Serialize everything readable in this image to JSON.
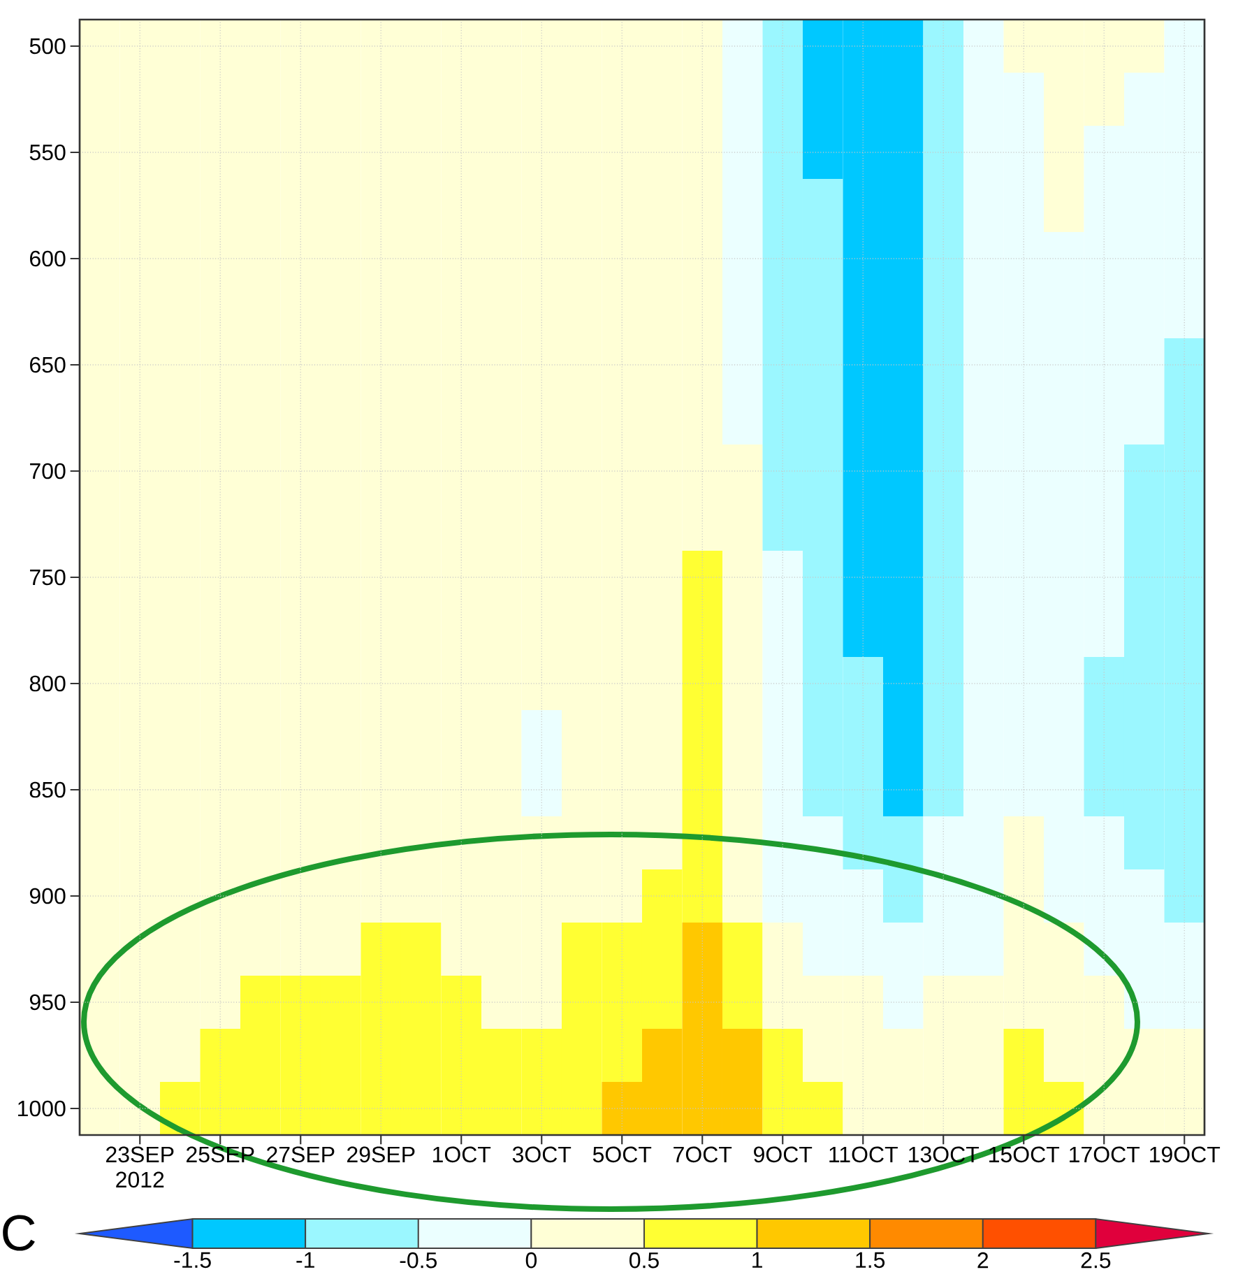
{
  "chart_data": {
    "type": "heatmap",
    "categories": [
      null,
      "23SEP 2012",
      null,
      "25SEP",
      null,
      "27SEP",
      null,
      "29SEP",
      null,
      "1OCT",
      null,
      "3OCT",
      null,
      "5OCT",
      null,
      "7OCT",
      null,
      "9OCT",
      null,
      "11OCT",
      null,
      "13OCT",
      null,
      "15OCT",
      null,
      "17OCT",
      null,
      "19OCT"
    ],
    "y_categories": [
      "500",
      null,
      "550",
      null,
      "600",
      null,
      "650",
      null,
      "700",
      null,
      "750",
      null,
      "800",
      null,
      "850",
      null,
      "900",
      null,
      "950",
      null,
      "1000"
    ],
    "cells": [
      [
        0.25,
        0.25,
        0.25,
        0.25,
        0.25,
        0.25,
        0.25,
        0.25,
        0.25,
        0.25,
        0.25,
        0.25,
        0.25,
        0.25,
        0.25,
        0.25,
        -0.25,
        -0.75,
        -1.25,
        -1.25,
        -1.25,
        -0.75,
        -0.25,
        0.25,
        0.25,
        0.25,
        0.25,
        -0.25
      ],
      [
        0.25,
        0.25,
        0.25,
        0.25,
        0.25,
        0.25,
        0.25,
        0.25,
        0.25,
        0.25,
        0.25,
        0.25,
        0.25,
        0.25,
        0.25,
        0.25,
        -0.25,
        -0.75,
        -1.25,
        -1.25,
        -1.25,
        -0.75,
        -0.25,
        -0.25,
        0.25,
        0.25,
        -0.25,
        -0.25
      ],
      [
        0.25,
        0.25,
        0.25,
        0.25,
        0.25,
        0.25,
        0.25,
        0.25,
        0.25,
        0.25,
        0.25,
        0.25,
        0.25,
        0.25,
        0.25,
        0.25,
        -0.25,
        -0.75,
        -1.25,
        -1.25,
        -1.25,
        -0.75,
        -0.25,
        -0.25,
        0.25,
        -0.25,
        -0.25,
        -0.25
      ],
      [
        0.25,
        0.25,
        0.25,
        0.25,
        0.25,
        0.25,
        0.25,
        0.25,
        0.25,
        0.25,
        0.25,
        0.25,
        0.25,
        0.25,
        0.25,
        0.25,
        -0.25,
        -0.75,
        -0.75,
        -1.25,
        -1.25,
        -0.75,
        -0.25,
        -0.25,
        0.25,
        -0.25,
        -0.25,
        -0.25
      ],
      [
        0.25,
        0.25,
        0.25,
        0.25,
        0.25,
        0.25,
        0.25,
        0.25,
        0.25,
        0.25,
        0.25,
        0.25,
        0.25,
        0.25,
        0.25,
        0.25,
        -0.25,
        -0.75,
        -0.75,
        -1.25,
        -1.25,
        -0.75,
        -0.25,
        -0.25,
        -0.25,
        -0.25,
        -0.25,
        -0.25
      ],
      [
        0.25,
        0.25,
        0.25,
        0.25,
        0.25,
        0.25,
        0.25,
        0.25,
        0.25,
        0.25,
        0.25,
        0.25,
        0.25,
        0.25,
        0.25,
        0.25,
        -0.25,
        -0.75,
        -0.75,
        -1.25,
        -1.25,
        -0.75,
        -0.25,
        -0.25,
        -0.25,
        -0.25,
        -0.25,
        -0.25
      ],
      [
        0.25,
        0.25,
        0.25,
        0.25,
        0.25,
        0.25,
        0.25,
        0.25,
        0.25,
        0.25,
        0.25,
        0.25,
        0.25,
        0.25,
        0.25,
        0.25,
        -0.25,
        -0.75,
        -0.75,
        -1.25,
        -1.25,
        -0.75,
        -0.25,
        -0.25,
        -0.25,
        -0.25,
        -0.25,
        -0.75
      ],
      [
        0.25,
        0.25,
        0.25,
        0.25,
        0.25,
        0.25,
        0.25,
        0.25,
        0.25,
        0.25,
        0.25,
        0.25,
        0.25,
        0.25,
        0.25,
        0.25,
        -0.25,
        -0.75,
        -0.75,
        -1.25,
        -1.25,
        -0.75,
        -0.25,
        -0.25,
        -0.25,
        -0.25,
        -0.25,
        -0.75
      ],
      [
        0.25,
        0.25,
        0.25,
        0.25,
        0.25,
        0.25,
        0.25,
        0.25,
        0.25,
        0.25,
        0.25,
        0.25,
        0.25,
        0.25,
        0.25,
        0.25,
        0.25,
        -0.75,
        -0.75,
        -1.25,
        -1.25,
        -0.75,
        -0.25,
        -0.25,
        -0.25,
        -0.25,
        -0.75,
        -0.75
      ],
      [
        0.25,
        0.25,
        0.25,
        0.25,
        0.25,
        0.25,
        0.25,
        0.25,
        0.25,
        0.25,
        0.25,
        0.25,
        0.25,
        0.25,
        0.25,
        0.25,
        0.25,
        -0.75,
        -0.75,
        -1.25,
        -1.25,
        -0.75,
        -0.25,
        -0.25,
        -0.25,
        -0.25,
        -0.75,
        -0.75
      ],
      [
        0.25,
        0.25,
        0.25,
        0.25,
        0.25,
        0.25,
        0.25,
        0.25,
        0.25,
        0.25,
        0.25,
        0.25,
        0.25,
        0.25,
        0.25,
        0.75,
        0.25,
        -0.25,
        -0.75,
        -1.25,
        -1.25,
        -0.75,
        -0.25,
        -0.25,
        -0.25,
        -0.25,
        -0.75,
        -0.75
      ],
      [
        0.25,
        0.25,
        0.25,
        0.25,
        0.25,
        0.25,
        0.25,
        0.25,
        0.25,
        0.25,
        0.25,
        0.25,
        0.25,
        0.25,
        0.25,
        0.75,
        0.25,
        -0.25,
        -0.75,
        -1.25,
        -1.25,
        -0.75,
        -0.25,
        -0.25,
        -0.25,
        -0.25,
        -0.75,
        -0.75
      ],
      [
        0.25,
        0.25,
        0.25,
        0.25,
        0.25,
        0.25,
        0.25,
        0.25,
        0.25,
        0.25,
        0.25,
        0.25,
        0.25,
        0.25,
        0.25,
        0.75,
        0.25,
        -0.25,
        -0.75,
        -0.75,
        -1.25,
        -0.75,
        -0.25,
        -0.25,
        -0.25,
        -0.75,
        -0.75,
        -0.75
      ],
      [
        0.25,
        0.25,
        0.25,
        0.25,
        0.25,
        0.25,
        0.25,
        0.25,
        0.25,
        0.25,
        0.25,
        -0.25,
        0.25,
        0.25,
        0.25,
        0.75,
        0.25,
        -0.25,
        -0.75,
        -0.75,
        -1.25,
        -0.75,
        -0.25,
        -0.25,
        -0.25,
        -0.75,
        -0.75,
        -0.75
      ],
      [
        0.25,
        0.25,
        0.25,
        0.25,
        0.25,
        0.25,
        0.25,
        0.25,
        0.25,
        0.25,
        0.25,
        -0.25,
        0.25,
        0.25,
        0.25,
        0.75,
        0.25,
        -0.25,
        -0.75,
        -0.75,
        -1.25,
        -0.75,
        -0.25,
        -0.25,
        -0.25,
        -0.75,
        -0.75,
        -0.75
      ],
      [
        0.25,
        0.25,
        0.25,
        0.25,
        0.25,
        0.25,
        0.25,
        0.25,
        0.25,
        0.25,
        0.25,
        0.25,
        0.25,
        0.25,
        0.25,
        0.75,
        0.25,
        -0.25,
        -0.25,
        -0.75,
        -0.75,
        -0.25,
        -0.25,
        0.25,
        -0.25,
        -0.25,
        -0.75,
        -0.75
      ],
      [
        0.25,
        0.25,
        0.25,
        0.25,
        0.25,
        0.25,
        0.25,
        0.25,
        0.25,
        0.25,
        0.25,
        0.25,
        0.25,
        0.25,
        0.75,
        0.75,
        0.25,
        -0.25,
        -0.25,
        -0.25,
        -0.75,
        -0.25,
        -0.25,
        0.25,
        -0.25,
        -0.25,
        -0.25,
        -0.75
      ],
      [
        0.25,
        0.25,
        0.25,
        0.25,
        0.25,
        0.25,
        0.25,
        0.75,
        0.75,
        0.25,
        0.25,
        0.25,
        0.75,
        0.75,
        0.75,
        1.25,
        0.75,
        0.25,
        -0.25,
        -0.25,
        -0.25,
        -0.25,
        -0.25,
        0.25,
        0.25,
        -0.25,
        -0.25,
        -0.25
      ],
      [
        0.25,
        0.25,
        0.25,
        0.25,
        0.75,
        0.75,
        0.75,
        0.75,
        0.75,
        0.75,
        0.25,
        0.25,
        0.75,
        0.75,
        0.75,
        1.25,
        0.75,
        0.25,
        0.25,
        0.25,
        -0.25,
        0.25,
        0.25,
        0.25,
        0.25,
        0.25,
        -0.25,
        -0.25
      ],
      [
        0.25,
        0.25,
        0.25,
        0.75,
        0.75,
        0.75,
        0.75,
        0.75,
        0.75,
        0.75,
        0.75,
        0.75,
        0.75,
        0.75,
        1.25,
        1.25,
        1.25,
        0.75,
        0.25,
        0.25,
        0.25,
        0.25,
        0.25,
        0.75,
        0.25,
        0.25,
        0.25,
        0.25
      ],
      [
        0.25,
        0.25,
        0.75,
        0.75,
        0.75,
        0.75,
        0.75,
        0.75,
        0.75,
        0.75,
        0.75,
        0.75,
        0.75,
        1.25,
        1.25,
        1.25,
        1.25,
        0.75,
        0.75,
        0.25,
        0.25,
        0.25,
        0.25,
        0.75,
        0.75,
        0.25,
        0.25,
        0.25
      ]
    ],
    "clim": [
      -2,
      3
    ],
    "cticks": [
      -1.5,
      -1,
      -0.5,
      0,
      0.5,
      1,
      1.5,
      2,
      2.5
    ],
    "colors": [
      "#1e5aff",
      "#00c8ff",
      "#9bf7ff",
      "#ebffff",
      "#ffffd6",
      "#ffff33",
      "#ffc800",
      "#ff8a00",
      "#ff5000",
      "#e0003c"
    ],
    "clabel": "C",
    "grid": true
  }
}
